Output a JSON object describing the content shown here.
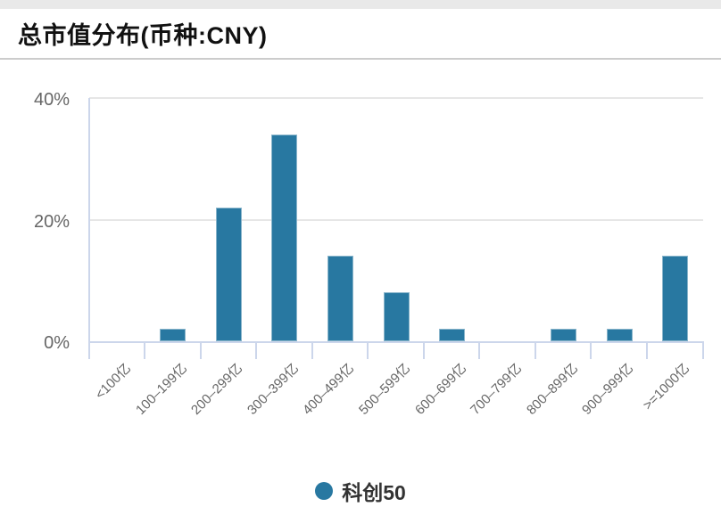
{
  "header": {
    "title": "总市值分布(币种:CNY)"
  },
  "chart_data": {
    "type": "bar",
    "title": "总市值分布(币种:CNY)",
    "categories": [
      "<100亿",
      "100–199亿",
      "200–299亿",
      "300–399亿",
      "400–499亿",
      "500–599亿",
      "600–699亿",
      "700–799亿",
      "800–899亿",
      "900–999亿",
      ">=1000亿"
    ],
    "series": [
      {
        "name": "科创50",
        "color": "#2878a1",
        "values": [
          0,
          2,
          22,
          34,
          14,
          8,
          2,
          0,
          2,
          2,
          14
        ]
      }
    ],
    "xlabel": "",
    "ylabel": "",
    "unit": "%",
    "ylim": [
      0,
      40
    ],
    "yticks": [
      {
        "value": 0,
        "label": "0%"
      },
      {
        "value": 20,
        "label": "20%"
      },
      {
        "value": 40,
        "label": "40%"
      }
    ],
    "grid": true,
    "legend_position": "bottom"
  },
  "legend": {
    "items": [
      {
        "label": "科创50",
        "color": "#2878a1"
      }
    ]
  },
  "colors": {
    "bar": "#2878a1",
    "axis_line": "#ccd6eb",
    "grid_line": "#e6e6e6",
    "tick_label": "#666666",
    "title": "#111111",
    "divider": "#cccccc",
    "top_band": "#e9e9e9",
    "legend_text": "#333333",
    "background": "#ffffff"
  }
}
